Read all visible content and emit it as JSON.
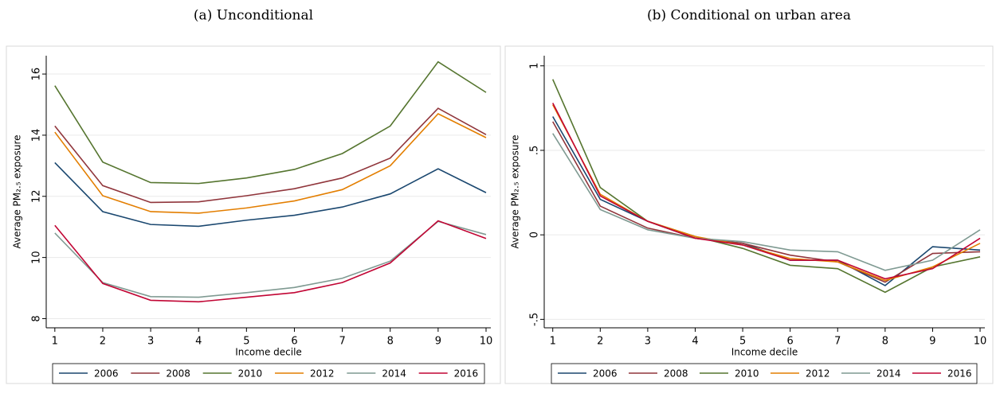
{
  "chart_data": [
    {
      "type": "line",
      "title": "(a) Unconditional",
      "x_label": "Income decile",
      "y_label": "Average PM₂.₅ exposure",
      "x": [
        1,
        2,
        3,
        4,
        5,
        6,
        7,
        8,
        9,
        10
      ],
      "xlim": [
        0.82,
        10.1
      ],
      "xticks": [
        1,
        2,
        3,
        4,
        5,
        6,
        7,
        8,
        9,
        10
      ],
      "ylim": [
        7.7,
        16.6
      ],
      "yticks": [
        8,
        10,
        12,
        14,
        16
      ],
      "grid": true,
      "legend": "bottom",
      "series": [
        {
          "name": "2006",
          "color": "#1a476f",
          "values": [
            13.1,
            11.5,
            11.08,
            11.02,
            11.22,
            11.38,
            11.65,
            12.08,
            12.9,
            12.12
          ]
        },
        {
          "name": "2008",
          "color": "#90353b",
          "values": [
            14.3,
            12.35,
            11.8,
            11.82,
            12.02,
            12.25,
            12.6,
            13.25,
            14.88,
            14.02
          ]
        },
        {
          "name": "2010",
          "color": "#55752f",
          "values": [
            15.62,
            13.12,
            12.45,
            12.42,
            12.6,
            12.88,
            13.4,
            14.3,
            16.4,
            15.4
          ]
        },
        {
          "name": "2012",
          "color": "#e37e00",
          "values": [
            14.1,
            12.02,
            11.5,
            11.45,
            11.62,
            11.85,
            12.22,
            13.0,
            14.7,
            13.92
          ]
        },
        {
          "name": "2014",
          "color": "#7f9a92",
          "values": [
            10.8,
            9.18,
            8.72,
            8.7,
            8.85,
            9.02,
            9.32,
            9.88,
            11.18,
            10.75
          ]
        },
        {
          "name": "2016",
          "color": "#c10534",
          "values": [
            11.05,
            9.15,
            8.6,
            8.55,
            8.7,
            8.85,
            9.18,
            9.82,
            11.2,
            10.62
          ]
        }
      ]
    },
    {
      "type": "line",
      "title": "(b) Conditional on urban area",
      "x_label": "Income decile",
      "y_label": "Average PM₂.₅ exposure",
      "x": [
        1,
        2,
        3,
        4,
        5,
        6,
        7,
        8,
        9,
        10
      ],
      "xlim": [
        0.82,
        10.1
      ],
      "xticks": [
        1,
        2,
        3,
        4,
        5,
        6,
        7,
        8,
        9,
        10
      ],
      "ylim": [
        -0.55,
        1.06
      ],
      "yticks": [
        {
          "value": -0.5,
          "label": "-.5"
        },
        0,
        {
          "value": 0.5,
          "label": ".5"
        },
        1
      ],
      "grid": true,
      "legend": "bottom",
      "series": [
        {
          "name": "2006",
          "color": "#1a476f",
          "values": [
            0.7,
            0.21,
            0.08,
            -0.02,
            -0.05,
            -0.15,
            -0.15,
            -0.3,
            -0.07,
            -0.09
          ]
        },
        {
          "name": "2008",
          "color": "#90353b",
          "values": [
            0.67,
            0.17,
            0.04,
            -0.02,
            -0.05,
            -0.12,
            -0.16,
            -0.28,
            -0.11,
            -0.1
          ]
        },
        {
          "name": "2010",
          "color": "#55752f",
          "values": [
            0.92,
            0.28,
            0.08,
            -0.01,
            -0.08,
            -0.18,
            -0.2,
            -0.34,
            -0.19,
            -0.13
          ]
        },
        {
          "name": "2012",
          "color": "#e37e00",
          "values": [
            0.77,
            0.24,
            0.08,
            -0.01,
            -0.06,
            -0.14,
            -0.16,
            -0.27,
            -0.19,
            -0.05
          ]
        },
        {
          "name": "2014",
          "color": "#7f9a92",
          "values": [
            0.6,
            0.15,
            0.03,
            -0.02,
            -0.04,
            -0.09,
            -0.1,
            -0.21,
            -0.15,
            0.03
          ]
        },
        {
          "name": "2016",
          "color": "#c10534",
          "values": [
            0.78,
            0.23,
            0.08,
            -0.02,
            -0.06,
            -0.15,
            -0.15,
            -0.26,
            -0.2,
            -0.02
          ]
        }
      ]
    }
  ]
}
